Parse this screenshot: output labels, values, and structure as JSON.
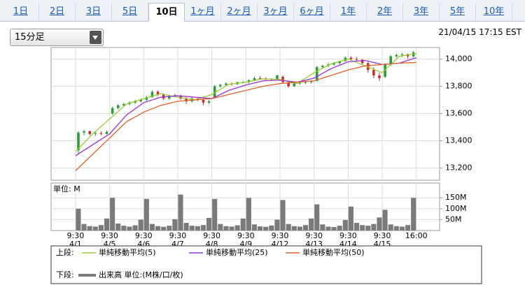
{
  "tabs": [
    "1日",
    "2日",
    "3日",
    "5日",
    "10日",
    "1ヶ月",
    "2ヶ月",
    "3ヶ月",
    "6ヶ月",
    "1年",
    "2年",
    "3年",
    "5年",
    "10年"
  ],
  "selected_tab": 4,
  "interval": "15分足",
  "timestamp": "21/04/15 17:15 EST",
  "chart_data": [
    {
      "type": "candlestick",
      "legend_prefix": "上段:",
      "xlim": [
        -4.3,
        64.1
      ],
      "xticks": [
        {
          "value": 0,
          "label": "9:30",
          "date": "4/1"
        },
        {
          "value": 6,
          "label": "9:30",
          "date": "4/5"
        },
        {
          "value": 12,
          "label": "9:30",
          "date": "4/6"
        },
        {
          "value": 18,
          "label": "9:30",
          "date": "4/7"
        },
        {
          "value": 24,
          "label": "9:30",
          "date": "4/8"
        },
        {
          "value": 30,
          "label": "9:30",
          "date": "4/9"
        },
        {
          "value": 36,
          "label": "9:30",
          "date": "4/12"
        },
        {
          "value": 42,
          "label": "9:30",
          "date": "4/13"
        },
        {
          "value": 48,
          "label": "9:30",
          "date": "4/14"
        },
        {
          "value": 54,
          "label": "9:30",
          "date": "4/15"
        },
        {
          "value": 60,
          "label": "16:00"
        }
      ],
      "ylim": [
        13110,
        14085
      ],
      "yticks": [
        {
          "value": 13200,
          "label": "13,200"
        },
        {
          "value": 13400,
          "label": "13,400"
        },
        {
          "value": 13600,
          "label": "13,600"
        },
        {
          "value": 13800,
          "label": "13,800"
        },
        {
          "value": 14000,
          "label": "14,000"
        }
      ],
      "grid": true,
      "up_color": "#2a9d3a",
      "down_color": "#c8302a",
      "open": [
        13330,
        13460,
        13470,
        13450,
        13455,
        13450,
        13600,
        13640,
        13660,
        13670,
        13680,
        13690,
        13700,
        13720,
        13760,
        13740,
        13710,
        13730,
        13730,
        13710,
        13690,
        13710,
        13700,
        13680,
        13720,
        13800,
        13810,
        13820,
        13815,
        13830,
        13830,
        13845,
        13860,
        13855,
        13850,
        13855,
        13870,
        13830,
        13800,
        13820,
        13825,
        13830,
        13840,
        13940,
        13950,
        13960,
        13970,
        13985,
        14010,
        14000,
        13995,
        13970,
        13920,
        13880,
        13870,
        13960,
        14020,
        14030,
        14035,
        14020
      ],
      "high": [
        13470,
        13480,
        13475,
        13465,
        13470,
        13475,
        13650,
        13670,
        13680,
        13690,
        13700,
        13710,
        13730,
        13770,
        13770,
        13750,
        13740,
        13745,
        13740,
        13720,
        13720,
        13720,
        13710,
        13700,
        13810,
        13820,
        13830,
        13830,
        13835,
        13840,
        13850,
        13870,
        13875,
        13865,
        13860,
        13885,
        13880,
        13840,
        13830,
        13835,
        13840,
        13845,
        13950,
        13960,
        13970,
        13980,
        13990,
        14020,
        14020,
        14015,
        14000,
        13980,
        13940,
        13900,
        13970,
        14030,
        14040,
        14045,
        14040,
        14060
      ],
      "low": [
        13300,
        13440,
        13440,
        13435,
        13440,
        13445,
        13590,
        13630,
        13650,
        13660,
        13670,
        13680,
        13690,
        13715,
        13730,
        13700,
        13700,
        13720,
        13700,
        13670,
        13680,
        13690,
        13660,
        13670,
        13710,
        13790,
        13800,
        13805,
        13810,
        13820,
        13820,
        13840,
        13850,
        13845,
        13840,
        13850,
        13820,
        13790,
        13795,
        13810,
        13815,
        13820,
        13835,
        13930,
        13940,
        13950,
        13960,
        13980,
        13990,
        13985,
        13960,
        13900,
        13860,
        13840,
        13860,
        13950,
        14010,
        14015,
        14000,
        14010
      ],
      "close": [
        13460,
        13470,
        13450,
        13455,
        13450,
        13465,
        13640,
        13660,
        13670,
        13680,
        13690,
        13700,
        13720,
        13760,
        13740,
        13710,
        13730,
        13735,
        13710,
        13690,
        13710,
        13700,
        13680,
        13690,
        13800,
        13810,
        13820,
        13815,
        13830,
        13830,
        13845,
        13860,
        13855,
        13850,
        13855,
        13880,
        13830,
        13800,
        13820,
        13825,
        13830,
        13835,
        13940,
        13950,
        13960,
        13970,
        13985,
        14010,
        14000,
        13995,
        13970,
        13920,
        13880,
        13860,
        13960,
        14020,
        14030,
        14035,
        14020,
        14050
      ],
      "series": [
        {
          "name": "単純移動平均(5)",
          "color": "#9acd32",
          "x": [
            0,
            3,
            6,
            9,
            12,
            15,
            18,
            21,
            24,
            27,
            30,
            33,
            36,
            39,
            42,
            45,
            48,
            51,
            54,
            57,
            60
          ],
          "values": [
            13320,
            13450,
            13560,
            13670,
            13710,
            13745,
            13720,
            13700,
            13740,
            13815,
            13830,
            13855,
            13850,
            13820,
            13900,
            13965,
            14000,
            13950,
            13900,
            14020,
            14040
          ]
        },
        {
          "name": "単純移動平均(25)",
          "color": "#9b30d0",
          "x": [
            0,
            3,
            6,
            9,
            12,
            15,
            18,
            21,
            24,
            27,
            30,
            33,
            36,
            39,
            42,
            45,
            48,
            51,
            54,
            57,
            60
          ],
          "values": [
            13290,
            13370,
            13450,
            13590,
            13680,
            13720,
            13730,
            13720,
            13710,
            13770,
            13810,
            13840,
            13845,
            13830,
            13860,
            13930,
            13980,
            13990,
            13960,
            13970,
            14010
          ]
        },
        {
          "name": "単純移動平均(50)",
          "color": "#e0602a",
          "x": [
            0,
            3,
            6,
            9,
            12,
            15,
            18,
            21,
            24,
            27,
            30,
            33,
            36,
            39,
            42,
            45,
            48,
            51,
            54,
            57,
            60
          ],
          "values": [
            13180,
            13300,
            13420,
            13540,
            13610,
            13660,
            13690,
            13700,
            13710,
            13740,
            13770,
            13800,
            13820,
            13830,
            13840,
            13880,
            13920,
            13950,
            13960,
            13970,
            13975
          ]
        }
      ]
    },
    {
      "type": "bar",
      "unit_label": "単位: M",
      "legend_prefix": "下段:",
      "ylim": [
        0,
        218
      ],
      "yticks": [
        {
          "value": 50,
          "label": "50M"
        },
        {
          "value": 100,
          "label": "100M"
        },
        {
          "value": 150,
          "label": "150M"
        }
      ],
      "series": [
        {
          "name": "出来高 単位:(M株/口/枚)",
          "color": "#7a7a7a",
          "values": [
            100,
            30,
            20,
            18,
            25,
            55,
            150,
            32,
            22,
            18,
            24,
            50,
            145,
            30,
            20,
            17,
            22,
            52,
            165,
            35,
            22,
            20,
            25,
            58,
            145,
            30,
            20,
            18,
            24,
            55,
            150,
            28,
            19,
            17,
            23,
            50,
            140,
            30,
            20,
            18,
            25,
            55,
            120,
            28,
            18,
            16,
            22,
            48,
            110,
            35,
            25,
            22,
            30,
            60,
            95,
            28,
            20,
            18,
            25,
            150
          ]
        }
      ]
    }
  ]
}
